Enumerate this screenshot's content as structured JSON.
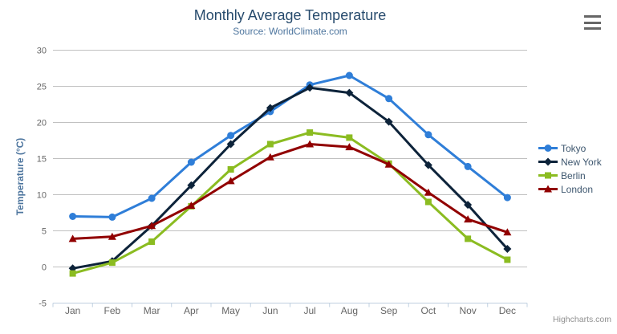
{
  "chart_data": {
    "type": "line",
    "title": "Monthly Average Temperature",
    "subtitle": "Source: WorldClimate.com",
    "xlabel": "",
    "ylabel": "Temperature (°C)",
    "categories": [
      "Jan",
      "Feb",
      "Mar",
      "Apr",
      "May",
      "Jun",
      "Jul",
      "Aug",
      "Sep",
      "Oct",
      "Nov",
      "Dec"
    ],
    "series": [
      {
        "name": "Tokyo",
        "color": "#2f7ed8",
        "marker": "circle",
        "values": [
          7.0,
          6.9,
          9.5,
          14.5,
          18.2,
          21.5,
          25.2,
          26.5,
          23.3,
          18.3,
          13.9,
          9.6
        ]
      },
      {
        "name": "New York",
        "color": "#0d233a",
        "marker": "diamond",
        "values": [
          -0.2,
          0.8,
          5.7,
          11.3,
          17.0,
          22.0,
          24.8,
          24.1,
          20.1,
          14.1,
          8.6,
          2.5
        ]
      },
      {
        "name": "Berlin",
        "color": "#8bbc21",
        "marker": "square",
        "values": [
          -0.9,
          0.6,
          3.5,
          8.4,
          13.5,
          17.0,
          18.6,
          17.9,
          14.3,
          9.0,
          3.9,
          1.0
        ]
      },
      {
        "name": "London",
        "color": "#910000",
        "marker": "triangle",
        "values": [
          3.9,
          4.2,
          5.7,
          8.5,
          11.9,
          15.2,
          17.0,
          16.6,
          14.2,
          10.3,
          6.6,
          4.8
        ]
      }
    ],
    "ylim": [
      -5,
      30
    ],
    "ytick_step": 5,
    "yticks": [
      -5,
      0,
      5,
      10,
      15,
      20,
      25,
      30
    ],
    "grid": true,
    "legend_position": "right"
  },
  "credits": "Highcharts.com",
  "icons": {
    "context_menu": "hamburger-icon"
  },
  "colors": {
    "title": "#274b6d",
    "subtitle": "#4d759e",
    "axis_title": "#4d759e",
    "axis_labels": "#666666",
    "axis_line": "#C0D0E0",
    "gridline": "#C0C0C0",
    "legend_text": "#3E576F",
    "credits": "#909090",
    "burger": "#666666"
  }
}
